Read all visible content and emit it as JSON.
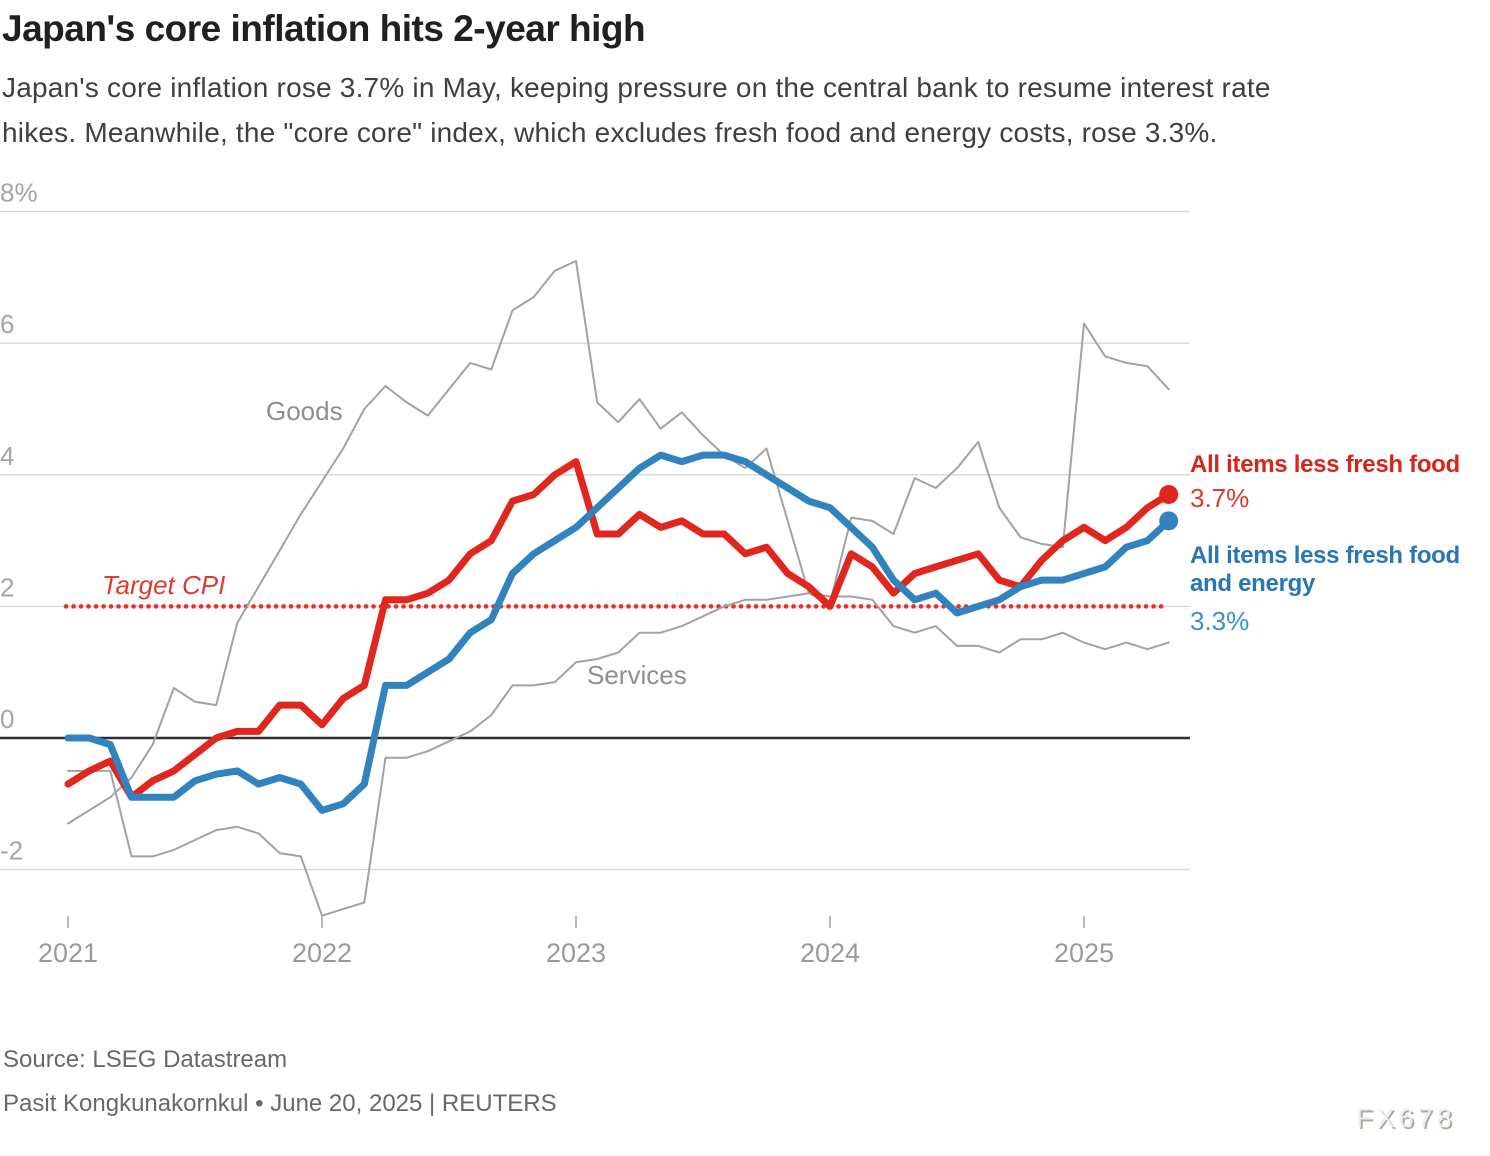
{
  "header": {
    "title": "Japan's core inflation hits 2-year high",
    "subtitle_line1": "Japan's core inflation rose 3.7% in May, keeping pressure on the central bank to resume interest rate",
    "subtitle_line2": "hikes. Meanwhile, the \"core core\" index, which excludes fresh food and energy costs, rose 3.3%."
  },
  "chart_data": {
    "type": "line",
    "x_unit": "month",
    "x_start": "2021-01",
    "x_end": "2025-05",
    "x_tick_labels": [
      "2021",
      "2022",
      "2023",
      "2024",
      "2025"
    ],
    "y_ticks": [
      {
        "label": "8%",
        "value": 8
      },
      {
        "label": "6",
        "value": 6
      },
      {
        "label": "4",
        "value": 4
      },
      {
        "label": "2",
        "value": 2
      },
      {
        "label": "0",
        "value": 0
      },
      {
        "label": "-2",
        "value": -2
      }
    ],
    "ylim": [
      -3.2,
      8.4
    ],
    "grid": true,
    "target_cpi": {
      "label": "Target CPI",
      "value": 2,
      "color": "#e63129"
    },
    "annotations": {
      "goods_label": "Goods",
      "services_label": "Services"
    },
    "series": [
      {
        "name": "Goods",
        "color": "#a2a2a2",
        "width": 2,
        "values": [
          -1.3,
          -1.1,
          -0.9,
          -0.6,
          -0.1,
          0.76,
          0.55,
          0.5,
          1.75,
          2.3,
          2.85,
          3.4,
          3.9,
          4.4,
          5.0,
          5.35,
          5.1,
          4.9,
          5.3,
          5.7,
          5.6,
          6.5,
          6.7,
          7.1,
          7.25,
          5.1,
          4.8,
          5.15,
          4.7,
          4.95,
          4.6,
          4.3,
          4.1,
          4.4,
          3.3,
          2.2,
          2.05,
          3.35,
          3.3,
          3.1,
          3.95,
          3.8,
          4.1,
          4.5,
          3.5,
          3.05,
          2.95,
          2.9,
          6.3,
          5.8,
          5.7,
          5.65,
          5.3
        ]
      },
      {
        "name": "Services",
        "color": "#a2a2a2",
        "width": 2,
        "values": [
          -0.5,
          -0.5,
          -0.5,
          -1.8,
          -1.8,
          -1.7,
          -1.55,
          -1.4,
          -1.35,
          -1.45,
          -1.75,
          -1.8,
          -2.7,
          -2.6,
          -2.5,
          -0.3,
          -0.3,
          -0.2,
          -0.05,
          0.1,
          0.35,
          0.8,
          0.8,
          0.85,
          1.15,
          1.2,
          1.3,
          1.6,
          1.6,
          1.7,
          1.85,
          2.0,
          2.1,
          2.1,
          2.15,
          2.2,
          2.15,
          2.15,
          2.1,
          1.7,
          1.6,
          1.7,
          1.4,
          1.4,
          1.3,
          1.5,
          1.5,
          1.6,
          1.45,
          1.35,
          1.45,
          1.35,
          1.45
        ]
      },
      {
        "name": "All items less fresh food",
        "color": "#e0261d",
        "width": 7,
        "end_dot": true,
        "end_value_label": "3.7%",
        "values": [
          -0.7,
          -0.5,
          -0.35,
          -0.9,
          -0.65,
          -0.5,
          -0.25,
          0.0,
          0.1,
          0.1,
          0.5,
          0.5,
          0.2,
          0.6,
          0.8,
          2.1,
          2.1,
          2.2,
          2.4,
          2.8,
          3.0,
          3.6,
          3.7,
          4.0,
          4.2,
          3.1,
          3.1,
          3.4,
          3.2,
          3.3,
          3.1,
          3.1,
          2.8,
          2.9,
          2.5,
          2.3,
          2.0,
          2.8,
          2.6,
          2.2,
          2.5,
          2.6,
          2.7,
          2.8,
          2.4,
          2.3,
          2.7,
          3.0,
          3.2,
          3.0,
          3.2,
          3.5,
          3.7
        ]
      },
      {
        "name": "All items less fresh food and energy",
        "color": "#3183bf",
        "width": 7,
        "end_dot": true,
        "end_value_label": "3.3%",
        "values": [
          0.0,
          0.0,
          -0.1,
          -0.9,
          -0.9,
          -0.9,
          -0.65,
          -0.55,
          -0.5,
          -0.7,
          -0.6,
          -0.7,
          -1.1,
          -1.0,
          -0.7,
          0.8,
          0.8,
          1.0,
          1.2,
          1.6,
          1.8,
          2.5,
          2.8,
          3.0,
          3.2,
          3.5,
          3.8,
          4.1,
          4.3,
          4.2,
          4.3,
          4.3,
          4.2,
          4.0,
          3.8,
          3.6,
          3.5,
          3.2,
          2.9,
          2.4,
          2.1,
          2.2,
          1.9,
          2.0,
          2.1,
          2.3,
          2.4,
          2.4,
          2.5,
          2.6,
          2.9,
          3.0,
          3.3
        ]
      }
    ],
    "legend_position": "right-edge"
  },
  "right_labels": {
    "red_title": "All items less fresh food",
    "red_value": "3.7%",
    "blue_title_line1": "All items less fresh food",
    "blue_title_line2": "and energy",
    "blue_value": "3.3%"
  },
  "footer": {
    "source": "Source: LSEG Datastream",
    "byline": "Pasit Kongkunakornkul • June 20, 2025 | REUTERS"
  },
  "watermark": "FX678"
}
